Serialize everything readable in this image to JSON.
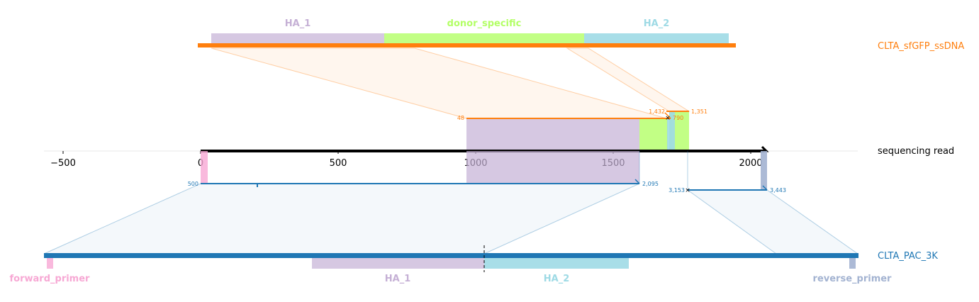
{
  "chart_data": {
    "type": "diagram",
    "x_axis": {
      "ticks": [
        -500,
        0,
        500,
        1000,
        1500,
        2000
      ],
      "tick_labels": [
        "−500",
        "0",
        "500",
        "1000",
        "1500",
        "2000"
      ]
    },
    "sequences": [
      {
        "name": "CLTA_sfGFP_ssDNA",
        "color": "#ff7f0e"
      },
      {
        "name": "sequencing read",
        "color": "#000000"
      },
      {
        "name": "CLTA_PAC_3K",
        "color": "#1f77b4"
      }
    ],
    "donor_features": [
      {
        "name": "HA_1",
        "color": "#c5b0d5"
      },
      {
        "name": "donor_specific",
        "color": "#b3ff66"
      },
      {
        "name": "HA_2",
        "color": "#9edae5"
      }
    ],
    "target_features": [
      {
        "name": "forward_primer",
        "color": "#f7a8d4"
      },
      {
        "name": "HA_1",
        "color": "#c5b0d5"
      },
      {
        "name": "HA_2",
        "color": "#9edae5"
      },
      {
        "name": "reverse_primer",
        "color": "#a3b3d1"
      }
    ],
    "alignment_labels": {
      "donor_left_start": "48",
      "donor_mid_end": "1,432",
      "donor_right_end": "790",
      "donor_right_start": "1,351",
      "target_left_start": "500",
      "target_left_end": "2,095",
      "target_right_start": "3,153",
      "target_right_end": "3,443"
    }
  }
}
